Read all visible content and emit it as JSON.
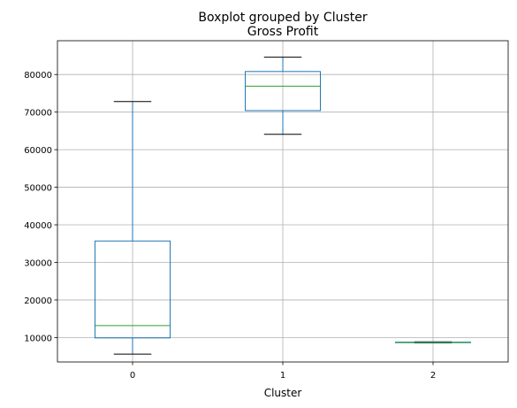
{
  "chart_data": {
    "type": "boxplot",
    "suptitle": "Boxplot grouped by Cluster",
    "title": "Gross Profit",
    "xlabel": "Cluster",
    "ylabel": "",
    "categories": [
      "0",
      "1",
      "2"
    ],
    "xlim": [
      0.5,
      3.5
    ],
    "ylim": [
      3500,
      89000
    ],
    "yticks": [
      10000,
      20000,
      30000,
      40000,
      50000,
      60000,
      70000,
      80000
    ],
    "ytick_labels": [
      "10000",
      "20000",
      "30000",
      "40000",
      "50000",
      "60000",
      "70000",
      "80000"
    ],
    "grid": true,
    "boxes": [
      {
        "category": "0",
        "whisker_low": 5600,
        "q1": 9900,
        "median": 13200,
        "q3": 35700,
        "whisker_high": 72800
      },
      {
        "category": "1",
        "whisker_low": 64100,
        "q1": 70400,
        "median": 76900,
        "q3": 80800,
        "whisker_high": 84600
      },
      {
        "category": "2",
        "whisker_low": 8600,
        "q1": 8650,
        "median": 8720,
        "q3": 8780,
        "whisker_high": 8850
      }
    ],
    "colors": {
      "box": "#1f77b4",
      "median": "#2ca02c",
      "whisker_cap": "#000000",
      "grid": "#b0b0b0"
    }
  }
}
